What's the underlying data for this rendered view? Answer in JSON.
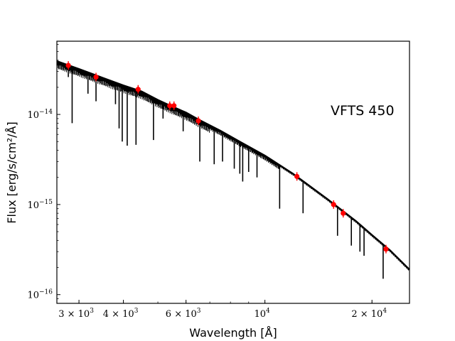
{
  "chart_data": {
    "type": "line",
    "title": "",
    "xlabel": "Wavelength [Å]",
    "ylabel": "Flux [erg/s/cm²/Å]",
    "x_scale": "log",
    "y_scale": "log",
    "xlim": [
      2600,
      25500
    ],
    "ylim": [
      8e-17,
      6.5e-14
    ],
    "grid": false,
    "annotation": "VFTS 450",
    "x_ticks": [
      {
        "value": 3000,
        "mantissa": "3 × 10",
        "exp": "3"
      },
      {
        "value": 4000,
        "mantissa": "4 × 10",
        "exp": "3"
      },
      {
        "value": 6000,
        "mantissa": "6 × 10",
        "exp": "3"
      },
      {
        "value": 10000,
        "mantissa": "10",
        "exp": "4"
      },
      {
        "value": 20000,
        "mantissa": "2 × 10",
        "exp": "4"
      }
    ],
    "y_ticks": [
      {
        "value": 1e-16,
        "mantissa": "10",
        "exp": "−16"
      },
      {
        "value": 1e-15,
        "mantissa": "10",
        "exp": "−15"
      },
      {
        "value": 1e-14,
        "mantissa": "10",
        "exp": "−14"
      }
    ],
    "series": [
      {
        "type": "model-spectrum",
        "color": "#000000",
        "continuum": [
          {
            "x": 2600,
            "y": 3.9e-14
          },
          {
            "x": 3000,
            "y": 3.2e-14
          },
          {
            "x": 3500,
            "y": 2.55e-14
          },
          {
            "x": 4000,
            "y": 2.1e-14
          },
          {
            "x": 4500,
            "y": 1.8e-14
          },
          {
            "x": 5000,
            "y": 1.45e-14
          },
          {
            "x": 5500,
            "y": 1.22e-14
          },
          {
            "x": 6000,
            "y": 1.05e-14
          },
          {
            "x": 6500,
            "y": 8.8e-15
          },
          {
            "x": 7500,
            "y": 6.6e-15
          },
          {
            "x": 8500,
            "y": 5e-15
          },
          {
            "x": 10000,
            "y": 3.5e-15
          },
          {
            "x": 12000,
            "y": 2.2e-15
          },
          {
            "x": 15000,
            "y": 1.15e-15
          },
          {
            "x": 18000,
            "y": 6.6e-16
          },
          {
            "x": 20000,
            "y": 4.6e-16
          },
          {
            "x": 22500,
            "y": 3.1e-16
          },
          {
            "x": 25500,
            "y": 1.9e-16
          }
        ],
        "absorption_lines": [
          {
            "x": 2800,
            "y": 2.6e-14
          },
          {
            "x": 2870,
            "y": 8e-15
          },
          {
            "x": 3180,
            "y": 1.7e-14
          },
          {
            "x": 3350,
            "y": 1.4e-14
          },
          {
            "x": 3800,
            "y": 1.3e-14
          },
          {
            "x": 3890,
            "y": 7e-15
          },
          {
            "x": 3970,
            "y": 5e-15
          },
          {
            "x": 4100,
            "y": 4.5e-15
          },
          {
            "x": 4340,
            "y": 4.6e-15
          },
          {
            "x": 4860,
            "y": 5.2e-15
          },
          {
            "x": 5170,
            "y": 9e-15
          },
          {
            "x": 5890,
            "y": 6.5e-15
          },
          {
            "x": 6560,
            "y": 3e-15
          },
          {
            "x": 7200,
            "y": 2.8e-15
          },
          {
            "x": 7600,
            "y": 3e-15
          },
          {
            "x": 8200,
            "y": 2.5e-15
          },
          {
            "x": 8500,
            "y": 2.2e-15
          },
          {
            "x": 8660,
            "y": 1.8e-15
          },
          {
            "x": 9000,
            "y": 2.3e-15
          },
          {
            "x": 9500,
            "y": 2e-15
          },
          {
            "x": 11000,
            "y": 9e-16
          },
          {
            "x": 12800,
            "y": 8e-16
          },
          {
            "x": 16000,
            "y": 4.5e-16
          },
          {
            "x": 17500,
            "y": 3.5e-16
          },
          {
            "x": 18500,
            "y": 3e-16
          },
          {
            "x": 19000,
            "y": 2.7e-16
          },
          {
            "x": 21500,
            "y": 1.5e-16
          }
        ]
      },
      {
        "type": "photometry",
        "color": "#ff0000",
        "points": [
          {
            "x": 2800,
            "y": 3.5e-14
          },
          {
            "x": 3350,
            "y": 2.6e-14
          },
          {
            "x": 4400,
            "y": 1.9e-14
          },
          {
            "x": 5400,
            "y": 1.25e-14
          },
          {
            "x": 5550,
            "y": 1.25e-14
          },
          {
            "x": 6500,
            "y": 8.5e-15
          },
          {
            "x": 12300,
            "y": 2.05e-15
          },
          {
            "x": 15600,
            "y": 1e-15
          },
          {
            "x": 16600,
            "y": 8e-16
          },
          {
            "x": 21900,
            "y": 3.2e-16
          }
        ]
      }
    ]
  }
}
